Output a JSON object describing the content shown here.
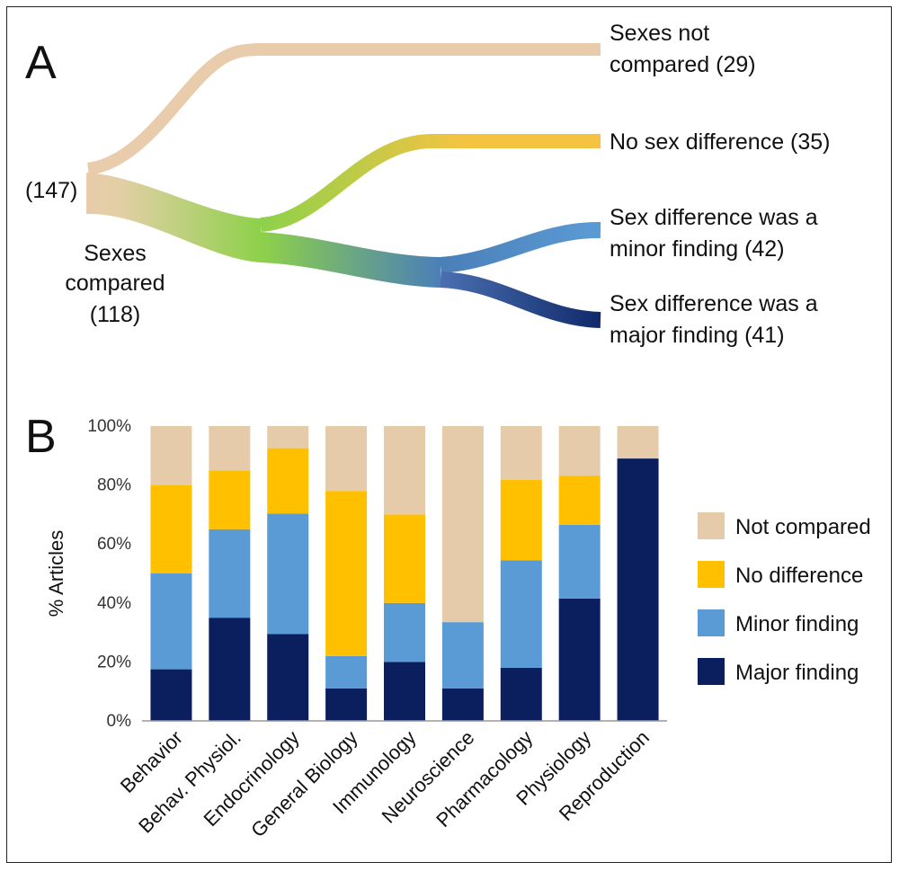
{
  "panel_a": {
    "label": "A",
    "total_label": "(147)",
    "compared_label": [
      "Sexes",
      "compared",
      "(118)"
    ],
    "outcomes": [
      {
        "lines": [
          "Sexes not",
          "compared (29)"
        ],
        "value": 29,
        "color": "#e8ccab"
      },
      {
        "lines": [
          "No sex difference (35)"
        ],
        "value": 35,
        "color": "#f5c342"
      },
      {
        "lines": [
          "Sex difference was a",
          "minor finding (42)"
        ],
        "value": 42,
        "color": "#5b9bd5"
      },
      {
        "lines": [
          "Sex difference was a",
          "major finding (41)"
        ],
        "value": 41,
        "color": "#1a2e6e"
      }
    ],
    "colors": {
      "root": "#e8ccab",
      "mid": "#8ed14a",
      "branch": "#4a7fb8"
    }
  },
  "chart_data": {
    "panel_label": "B",
    "type": "bar",
    "stacked": true,
    "categories": [
      "Behavior",
      "Behav. Physiol.",
      "Endocrinology",
      "General Biology",
      "Immunology",
      "Neuroscience",
      "Pharmacology",
      "Physiology",
      "Reproduction"
    ],
    "series": [
      {
        "name": "Major finding",
        "color": "#0b1f5e",
        "values": [
          17.5,
          35,
          29.5,
          11,
          20,
          11,
          18,
          41.5,
          89
        ]
      },
      {
        "name": "Minor finding",
        "color": "#5b9bd5",
        "values": [
          32.5,
          30,
          40.8,
          11,
          20,
          22.5,
          36.5,
          25,
          0
        ]
      },
      {
        "name": "No difference",
        "color": "#ffc000",
        "values": [
          30,
          20,
          22.2,
          56,
          30,
          0,
          27.3,
          16.7,
          0
        ]
      },
      {
        "name": "Not compared",
        "color": "#e6cbaa",
        "values": [
          20,
          15,
          7.5,
          22,
          30,
          66.5,
          18.2,
          16.8,
          11
        ]
      }
    ],
    "ylabel": "% Articles",
    "ylim": [
      0,
      100
    ],
    "yticks": [
      "0%",
      "20%",
      "40%",
      "60%",
      "80%",
      "100%"
    ],
    "legend": [
      "Not compared",
      "No difference",
      "Minor finding",
      "Major finding"
    ],
    "legend_position": "right"
  }
}
